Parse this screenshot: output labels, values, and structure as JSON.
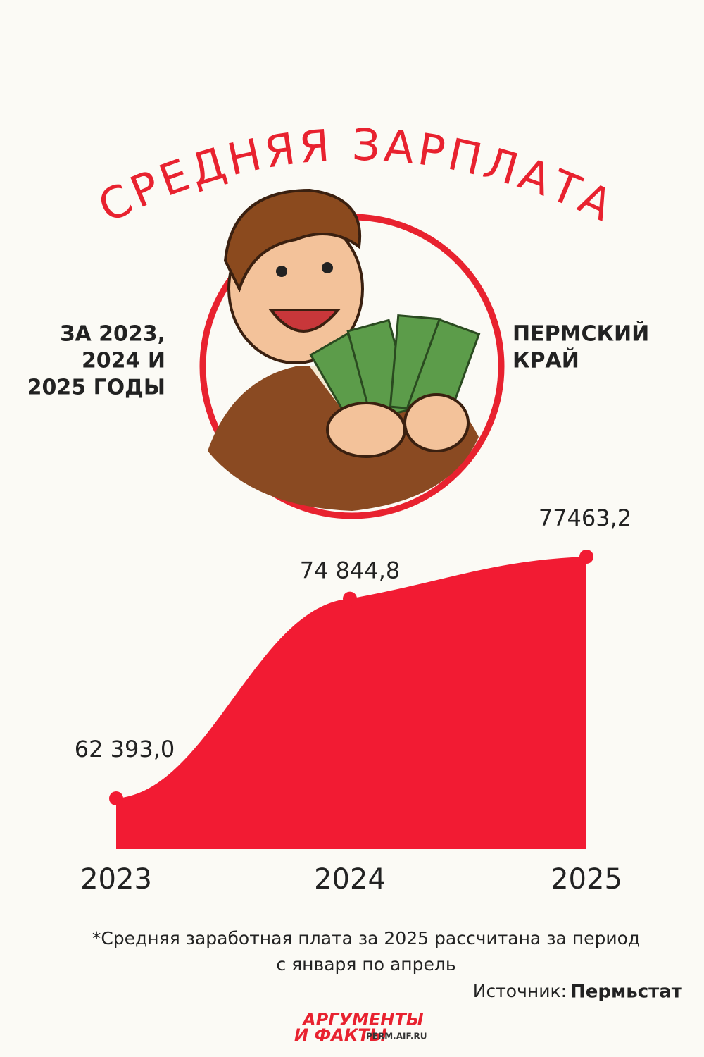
{
  "header": {
    "title": "СРЕДНЯЯ ЗАРПЛАТА",
    "left_lines": [
      "ЗА 2023,",
      "2024 И",
      "2025 ГОДЫ"
    ],
    "right_lines": [
      "ПЕРМСКИЙ",
      "КРАЙ"
    ]
  },
  "chart_data": {
    "type": "area",
    "color": "#f21b33",
    "categories": [
      "2023",
      "2024",
      "2025"
    ],
    "values": [
      62393.0,
      74844.8,
      77463.2
    ],
    "value_labels": [
      "62 393,0",
      "74 844,8",
      "77463,2"
    ]
  },
  "footer": {
    "note_lines": [
      "*Средняя заработная плата за 2025 рассчитана за период",
      "с января по апрель"
    ],
    "source_label": "Источник:",
    "source": "Пермьстат",
    "logo_lines": [
      "АРГУМЕНТЫ",
      "И ФАКТЫ"
    ],
    "logo_site": "PERM.AIF.RU"
  }
}
